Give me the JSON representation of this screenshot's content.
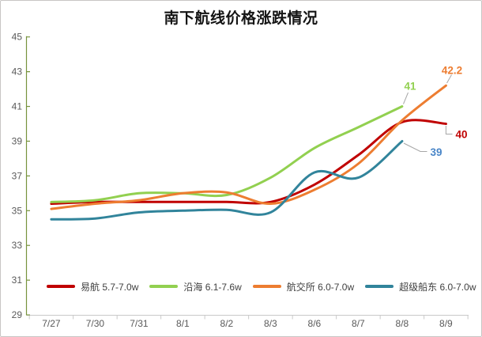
{
  "title": "南下航线价格涨跌情况",
  "chart_data": {
    "type": "line",
    "title": "南下航线价格涨跌情况",
    "categories": [
      "7/27",
      "7/30",
      "7/31",
      "8/1",
      "8/2",
      "8/3",
      "8/6",
      "8/7",
      "8/8",
      "8/9"
    ],
    "series": [
      {
        "name": "易航 5.7-7.0w",
        "color": "#C00000",
        "values": [
          35.4,
          35.5,
          35.5,
          35.5,
          35.5,
          35.5,
          36.5,
          38.2,
          40.1,
          40.0
        ],
        "end_label": "40",
        "end_label_color": "#C00000"
      },
      {
        "name": "沿海 6.1-7.6w",
        "color": "#92D050",
        "values": [
          35.5,
          35.6,
          36.0,
          36.0,
          35.9,
          36.9,
          38.6,
          39.8,
          41.0,
          null
        ],
        "end_label": "41",
        "end_label_color": "#92D050"
      },
      {
        "name": "航交所 6.0-7.0w",
        "color": "#ED7D31",
        "values": [
          35.1,
          35.4,
          35.6,
          36.0,
          36.05,
          35.4,
          36.2,
          37.7,
          40.2,
          42.2
        ],
        "end_label": "42.2",
        "end_label_color": "#ED7D31"
      },
      {
        "name": "超级船东 6.0-7.0w",
        "color": "#31849B",
        "values": [
          34.5,
          34.55,
          34.9,
          35.0,
          35.05,
          34.9,
          37.2,
          36.9,
          39.0,
          null
        ],
        "end_label": "39",
        "end_label_color": "#4A86C8"
      }
    ],
    "ylim": [
      29,
      45
    ],
    "yticks": [
      45,
      43,
      41,
      39,
      37,
      35,
      33,
      31,
      29
    ],
    "grid": false,
    "legend_position": "bottom",
    "smooth_lines": true,
    "colors": {
      "y_axis": "#77933C",
      "x_axis": "#C9C9C9",
      "tick_labels": "#595959",
      "leader_lines": "#A6A6A6",
      "legend_text": "#404040",
      "background": "#FFFFFF"
    }
  }
}
